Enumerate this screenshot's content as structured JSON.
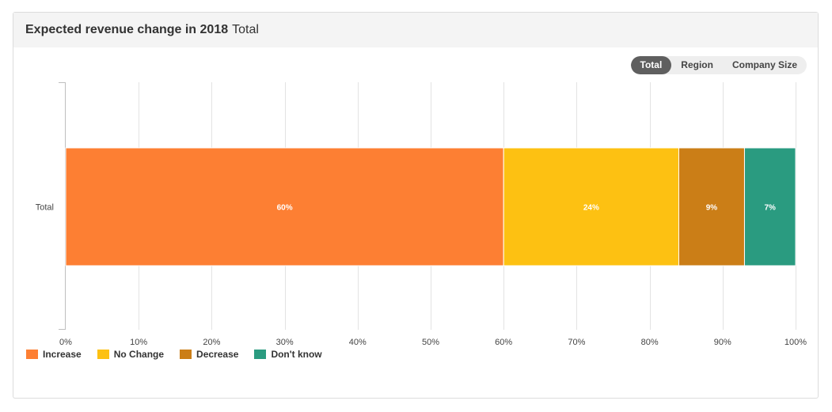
{
  "header": {
    "title": "Expected revenue change in 2018",
    "subtitle": "Total"
  },
  "tabs": [
    {
      "label": "Total",
      "active": true
    },
    {
      "label": "Region",
      "active": false
    },
    {
      "label": "Company Size",
      "active": false
    }
  ],
  "chart_data": {
    "type": "bar",
    "orientation": "horizontal",
    "stacked": true,
    "categories": [
      "Total"
    ],
    "series": [
      {
        "name": "Increase",
        "values": [
          60
        ],
        "label": "60%",
        "color": "#fd7f33"
      },
      {
        "name": "No Change",
        "values": [
          24
        ],
        "label": "24%",
        "color": "#fdc112"
      },
      {
        "name": "Decrease",
        "values": [
          9
        ],
        "label": "9%",
        "color": "#cb7e17"
      },
      {
        "name": "Don't know",
        "values": [
          7
        ],
        "label": "7%",
        "color": "#2a9b80"
      }
    ],
    "xlim": [
      0,
      100
    ],
    "xticks": [
      {
        "value": 0,
        "label": "0%"
      },
      {
        "value": 10,
        "label": "10%"
      },
      {
        "value": 20,
        "label": "20%"
      },
      {
        "value": 30,
        "label": "30%"
      },
      {
        "value": 40,
        "label": "40%"
      },
      {
        "value": 50,
        "label": "50%"
      },
      {
        "value": 60,
        "label": "60%"
      },
      {
        "value": 70,
        "label": "70%"
      },
      {
        "value": 80,
        "label": "80%"
      },
      {
        "value": 90,
        "label": "90%"
      },
      {
        "value": 100,
        "label": "100%"
      }
    ],
    "grid": true,
    "legend_position": "bottom-left"
  }
}
